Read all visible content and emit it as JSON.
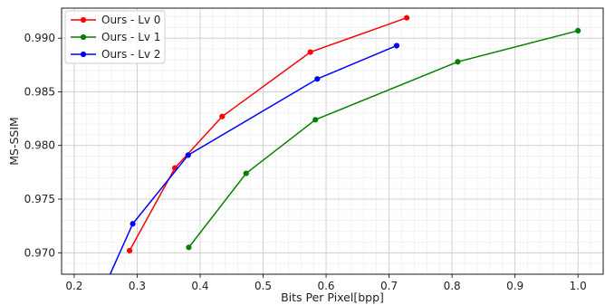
{
  "chart_data": {
    "type": "line",
    "title": "",
    "xlabel": "Bits Per Pixel[bpp]",
    "ylabel": "MS-SSIM",
    "xlim": [
      0.18,
      1.04
    ],
    "ylim": [
      0.968,
      0.9928
    ],
    "xticks": [
      0.2,
      0.3,
      0.4,
      0.5,
      0.6,
      0.7,
      0.8,
      0.9,
      1.0
    ],
    "xtick_labels": [
      "0.2",
      "0.3",
      "0.4",
      "0.5",
      "0.6",
      "0.7",
      "0.8",
      "0.9",
      "1.0"
    ],
    "yticks": [
      0.97,
      0.975,
      0.98,
      0.985,
      0.99
    ],
    "ytick_labels": [
      "0.970",
      "0.975",
      "0.980",
      "0.985",
      "0.990"
    ],
    "grid": true,
    "minor_grid": true,
    "legend_position": "top-left",
    "series": [
      {
        "name": "Ours - Lv 0",
        "color": "#ff0000",
        "x": [
          0.288,
          0.36,
          0.435,
          0.575,
          0.728
        ],
        "y": [
          0.9702,
          0.9779,
          0.9827,
          0.9887,
          0.9919
        ]
      },
      {
        "name": "Ours - Lv 1",
        "color": "#008000",
        "x": [
          0.382,
          0.473,
          0.583,
          0.809,
          1.0
        ],
        "y": [
          0.9705,
          0.9774,
          0.9824,
          0.9878,
          0.9907
        ]
      },
      {
        "name": "Ours - Lv 2",
        "color": "#0000ff",
        "x": [
          0.238,
          0.293,
          0.381,
          0.586,
          0.712
        ],
        "y": [
          0.9655,
          0.9727,
          0.9791,
          0.9862,
          0.9893
        ]
      }
    ]
  }
}
